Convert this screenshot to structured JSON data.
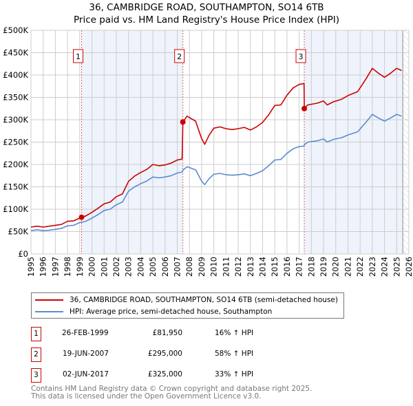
{
  "title_line1": "36, CAMBRIDGE ROAD, SOUTHAMPTON, SO14 6TB",
  "title_line2": "Price paid vs. HM Land Registry's House Price Index (HPI)",
  "colors": {
    "price": "#cc0000",
    "hpi": "#5b8bd0",
    "shade": "#eef3fc",
    "grid": "#cccccc"
  },
  "chart_data": {
    "type": "line",
    "title": "36, CAMBRIDGE ROAD, SOUTHAMPTON, SO14 6TB — Price paid vs. HM Land Registry's House Price Index (HPI)",
    "xlim": [
      1995,
      2026
    ],
    "ylim": [
      0,
      500000
    ],
    "x_ticks": [
      "1995",
      "1996",
      "1997",
      "1998",
      "1999",
      "2000",
      "2001",
      "2002",
      "2003",
      "2004",
      "2005",
      "2006",
      "2007",
      "2008",
      "2009",
      "2010",
      "2011",
      "2012",
      "2013",
      "2014",
      "2015",
      "2016",
      "2017",
      "2018",
      "2019",
      "2020",
      "2021",
      "2022",
      "2023",
      "2024",
      "2025",
      "2026"
    ],
    "y_ticks": [
      {
        "v": 0,
        "label": "£0"
      },
      {
        "v": 50000,
        "label": "£50K"
      },
      {
        "v": 100000,
        "label": "£100K"
      },
      {
        "v": 150000,
        "label": "£150K"
      },
      {
        "v": 200000,
        "label": "£200K"
      },
      {
        "v": 250000,
        "label": "£250K"
      },
      {
        "v": 300000,
        "label": "£300K"
      },
      {
        "v": 350000,
        "label": "£350K"
      },
      {
        "v": 400000,
        "label": "£400K"
      },
      {
        "v": 450000,
        "label": "£450K"
      },
      {
        "v": 500000,
        "label": "£500K"
      }
    ],
    "grid": true,
    "x": [
      1995,
      1995.5,
      1996,
      1996.5,
      1997,
      1997.5,
      1998,
      1998.5,
      1999,
      1999.15,
      1999.5,
      2000,
      2000.5,
      2001,
      2001.5,
      2002,
      2002.5,
      2003,
      2003.5,
      2004,
      2004.5,
      2005,
      2005.5,
      2006,
      2006.5,
      2007,
      2007.4,
      2007.46,
      2007.8,
      2008.5,
      2009,
      2009.25,
      2009.6,
      2010,
      2010.5,
      2011,
      2011.5,
      2012,
      2012.5,
      2013,
      2013.5,
      2014,
      2014.5,
      2015,
      2015.5,
      2016,
      2016.5,
      2017,
      2017.4,
      2017.42,
      2017.7,
      2018.5,
      2019,
      2019.3,
      2019.8,
      2020.5,
      2021,
      2021.8,
      2022.5,
      2023,
      2023.5,
      2024,
      2024.5,
      2025,
      2025.4
    ],
    "series": [
      {
        "name": "36, CAMBRIDGE ROAD, SOUTHAMPTON, SO14 6TB (semi-detached house)",
        "color": "#cc0000",
        "values": [
          60000,
          62000,
          60000,
          62000,
          64000,
          66000,
          73000,
          74000,
          80000,
          81950,
          85000,
          93000,
          102000,
          112000,
          116000,
          128000,
          134000,
          162000,
          174000,
          182000,
          189000,
          200000,
          197000,
          199000,
          203000,
          210000,
          212000,
          295000,
          308000,
          297000,
          258000,
          245000,
          265000,
          281000,
          284000,
          280000,
          278000,
          280000,
          283000,
          277000,
          284000,
          294000,
          311000,
          332000,
          333000,
          355000,
          371000,
          379000,
          381000,
          325000,
          333000,
          337000,
          342000,
          333000,
          340000,
          346000,
          354000,
          363000,
          392000,
          415000,
          404000,
          395000,
          404000,
          415000,
          410000
        ]
      },
      {
        "name": "HPI: Average price, semi-detached house, Southampton",
        "color": "#5b8bd0",
        "values": [
          52000,
          54000,
          52000,
          53000,
          55000,
          57000,
          63000,
          64000,
          70000,
          70600,
          73000,
          80000,
          88000,
          97000,
          100000,
          110000,
          116000,
          140000,
          150000,
          157000,
          163000,
          172000,
          170000,
          172000,
          175000,
          181000,
          183000,
          187000,
          195000,
          188000,
          163000,
          155000,
          168000,
          178000,
          180000,
          177000,
          176000,
          177000,
          179000,
          175000,
          180000,
          186000,
          197000,
          210000,
          211000,
          225000,
          235000,
          240000,
          241000,
          244000,
          250000,
          253000,
          257000,
          250000,
          256000,
          260000,
          266000,
          273000,
          295000,
          312000,
          304000,
          297000,
          304000,
          312000,
          308000
        ]
      }
    ],
    "sales": [
      {
        "num": "1",
        "x": 1999.15,
        "value": 81950
      },
      {
        "num": "2",
        "x": 2007.46,
        "value": 295000
      },
      {
        "num": "3",
        "x": 2017.42,
        "value": 325000
      }
    ],
    "shaded_ranges": [
      [
        1999.15,
        2007.46
      ],
      [
        2017.42,
        2025.5
      ]
    ],
    "hatched_range": [
      2025.5,
      2026
    ],
    "legend_placement": "below"
  },
  "legend": {
    "price": "36, CAMBRIDGE ROAD, SOUTHAMPTON, SO14 6TB (semi-detached house)",
    "hpi": "HPI: Average price, semi-detached house, Southampton"
  },
  "transactions": [
    {
      "num": "1",
      "date": "26-FEB-1999",
      "price": "£81,950",
      "hpi": "16% ↑ HPI"
    },
    {
      "num": "2",
      "date": "19-JUN-2007",
      "price": "£295,000",
      "hpi": "58% ↑ HPI"
    },
    {
      "num": "3",
      "date": "02-JUN-2017",
      "price": "£325,000",
      "hpi": "33% ↑ HPI"
    }
  ],
  "footer_line1": "Contains HM Land Registry data © Crown copyright and database right 2025.",
  "footer_line2": "This data is licensed under the Open Government Licence v3.0."
}
